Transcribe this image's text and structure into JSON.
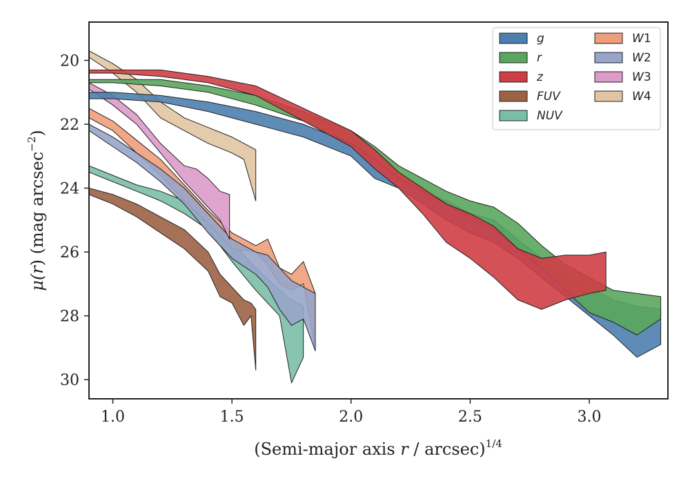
{
  "chart_data": {
    "type": "area",
    "xlabel": {
      "main": "(Semi-major axis ",
      "var": "r",
      "tail": " / arcsec)",
      "sup": "1/4"
    },
    "ylabel": {
      "mu": "μ(",
      "var": "r",
      "mid": ") (mag arcsec",
      "sup": "−2",
      "end": ")"
    },
    "xlim": [
      0.9,
      3.33
    ],
    "ylim": [
      30.6,
      18.8
    ],
    "y_inverted": true,
    "x_ticks": [
      1.0,
      1.5,
      2.0,
      2.5,
      3.0
    ],
    "x_tick_labels": [
      "1.0",
      "1.5",
      "2.0",
      "2.5",
      "3.0"
    ],
    "y_ticks": [
      20,
      22,
      24,
      26,
      28,
      30
    ],
    "y_tick_labels": [
      "20",
      "22",
      "24",
      "26",
      "28",
      "30"
    ],
    "grid": false,
    "legend": {
      "placement": "top-right",
      "columns": 2
    },
    "series": [
      {
        "name": "FUV",
        "color": "#9c6244",
        "x": [
          0.9,
          1.0,
          1.1,
          1.2,
          1.3,
          1.4,
          1.45,
          1.5,
          1.55,
          1.58,
          1.6
        ],
        "y_upper": [
          24.0,
          24.2,
          24.5,
          24.9,
          25.3,
          26.0,
          26.7,
          27.1,
          27.5,
          27.6,
          27.8
        ],
        "y_lower": [
          24.2,
          24.5,
          24.9,
          25.4,
          25.9,
          26.6,
          27.4,
          27.6,
          28.3,
          28.0,
          29.7
        ]
      },
      {
        "name": "NUV",
        "color": "#7bbea7",
        "x": [
          0.9,
          1.0,
          1.1,
          1.2,
          1.3,
          1.4,
          1.5,
          1.6,
          1.7,
          1.75,
          1.8
        ],
        "y_upper": [
          23.3,
          23.6,
          23.9,
          24.1,
          24.4,
          24.8,
          25.7,
          26.5,
          27.2,
          27.5,
          27.7
        ],
        "y_lower": [
          23.5,
          23.8,
          24.1,
          24.4,
          24.8,
          25.3,
          26.3,
          27.2,
          28.0,
          30.1,
          29.3
        ]
      },
      {
        "name": "W1",
        "color": "#ee9e7b",
        "x": [
          0.9,
          1.0,
          1.1,
          1.2,
          1.3,
          1.4,
          1.5,
          1.6,
          1.65,
          1.7,
          1.75,
          1.8,
          1.85
        ],
        "y_upper": [
          21.5,
          21.9,
          22.5,
          23.1,
          23.9,
          24.7,
          25.4,
          25.8,
          25.6,
          26.5,
          26.7,
          26.3,
          27.3
        ],
        "y_lower": [
          21.8,
          22.2,
          22.9,
          23.6,
          24.4,
          25.1,
          25.9,
          26.0,
          26.4,
          27.0,
          27.2,
          27.0,
          29.0
        ]
      },
      {
        "name": "W2",
        "color": "#97a5c9",
        "x": [
          0.9,
          1.0,
          1.1,
          1.2,
          1.3,
          1.4,
          1.5,
          1.6,
          1.65,
          1.7,
          1.75,
          1.8,
          1.85
        ],
        "y_upper": [
          22.0,
          22.4,
          22.9,
          23.4,
          24.0,
          24.8,
          25.6,
          26.0,
          26.1,
          26.5,
          26.9,
          27.1,
          27.3
        ],
        "y_lower": [
          22.2,
          22.7,
          23.2,
          23.8,
          24.5,
          25.4,
          26.2,
          26.7,
          27.1,
          27.8,
          28.3,
          28.1,
          29.1
        ]
      },
      {
        "name": "W3",
        "color": "#dd9bc9",
        "x": [
          0.9,
          1.0,
          1.1,
          1.2,
          1.3,
          1.35,
          1.4,
          1.45,
          1.49
        ],
        "y_upper": [
          20.7,
          21.1,
          21.7,
          22.6,
          23.3,
          23.4,
          23.7,
          24.1,
          24.2
        ],
        "y_lower": [
          20.9,
          21.4,
          22.0,
          22.9,
          23.8,
          24.2,
          24.6,
          25.0,
          25.6
        ]
      },
      {
        "name": "W4",
        "color": "#e1c5a2",
        "x": [
          0.9,
          1.0,
          1.1,
          1.2,
          1.3,
          1.4,
          1.5,
          1.55,
          1.6
        ],
        "y_upper": [
          19.7,
          20.1,
          20.6,
          21.3,
          21.8,
          22.1,
          22.4,
          22.6,
          22.8
        ],
        "y_lower": [
          19.9,
          20.4,
          21.0,
          21.8,
          22.2,
          22.6,
          22.9,
          23.1,
          24.4
        ]
      },
      {
        "name": "g",
        "color": "#4c7fae",
        "x": [
          0.9,
          1.0,
          1.2,
          1.4,
          1.6,
          1.8,
          2.0,
          2.1,
          2.2,
          2.3,
          2.4,
          2.5,
          2.6,
          2.7,
          2.8,
          2.9,
          3.0,
          3.1,
          3.2,
          3.3
        ],
        "y_upper": [
          21.0,
          21.0,
          21.1,
          21.3,
          21.6,
          22.0,
          22.6,
          23.1,
          23.6,
          24.1,
          24.4,
          24.8,
          25.0,
          25.6,
          26.2,
          26.7,
          27.1,
          27.5,
          27.7,
          27.8
        ],
        "y_lower": [
          21.2,
          21.2,
          21.3,
          21.6,
          22.0,
          22.4,
          23.0,
          23.7,
          24.0,
          24.5,
          25.0,
          25.4,
          25.7,
          26.2,
          26.8,
          27.4,
          28.0,
          28.6,
          29.3,
          28.9
        ]
      },
      {
        "name": "r",
        "color": "#5aa65d",
        "x": [
          0.9,
          1.0,
          1.2,
          1.4,
          1.6,
          1.8,
          2.0,
          2.1,
          2.2,
          2.3,
          2.4,
          2.5,
          2.6,
          2.7,
          2.8,
          2.9,
          3.0,
          3.1,
          3.2,
          3.3
        ],
        "y_upper": [
          20.6,
          20.6,
          20.6,
          20.8,
          21.1,
          21.6,
          22.2,
          22.7,
          23.3,
          23.7,
          24.1,
          24.4,
          24.6,
          25.1,
          25.8,
          26.4,
          26.8,
          27.2,
          27.3,
          27.4
        ],
        "y_lower": [
          20.7,
          20.7,
          20.8,
          21.0,
          21.4,
          21.9,
          22.6,
          23.1,
          23.7,
          24.1,
          24.5,
          24.9,
          25.3,
          25.9,
          26.5,
          27.2,
          27.9,
          28.2,
          28.6,
          28.1
        ]
      },
      {
        "name": "z",
        "color": "#cf3e45",
        "x": [
          0.9,
          1.0,
          1.2,
          1.4,
          1.6,
          1.8,
          2.0,
          2.1,
          2.2,
          2.3,
          2.4,
          2.5,
          2.6,
          2.7,
          2.8,
          2.9,
          3.0,
          3.07
        ],
        "y_upper": [
          20.3,
          20.3,
          20.3,
          20.5,
          20.8,
          21.5,
          22.2,
          22.8,
          23.5,
          24.0,
          24.5,
          24.8,
          25.2,
          25.9,
          26.2,
          26.1,
          26.1,
          26.0
        ],
        "y_lower": [
          20.4,
          20.4,
          20.5,
          20.7,
          21.1,
          21.9,
          22.7,
          23.4,
          24.0,
          24.8,
          25.7,
          26.2,
          26.8,
          27.5,
          27.8,
          27.5,
          27.3,
          27.2
        ]
      }
    ],
    "legend_order": [
      "g",
      "r",
      "z",
      "FUV",
      "NUV",
      "W1",
      "W2",
      "W3",
      "W4"
    ],
    "legend_labels": {
      "g": {
        "main": "g",
        "sub": ""
      },
      "r": {
        "main": "r",
        "sub": ""
      },
      "z": {
        "main": "z",
        "sub": ""
      },
      "FUV": {
        "main": "FUV",
        "sub": ""
      },
      "NUV": {
        "main": "NUV",
        "sub": ""
      },
      "W1": {
        "main": "W",
        "sub": "1"
      },
      "W2": {
        "main": "W",
        "sub": "2"
      },
      "W3": {
        "main": "W",
        "sub": "3"
      },
      "W4": {
        "main": "W",
        "sub": "4"
      }
    }
  }
}
